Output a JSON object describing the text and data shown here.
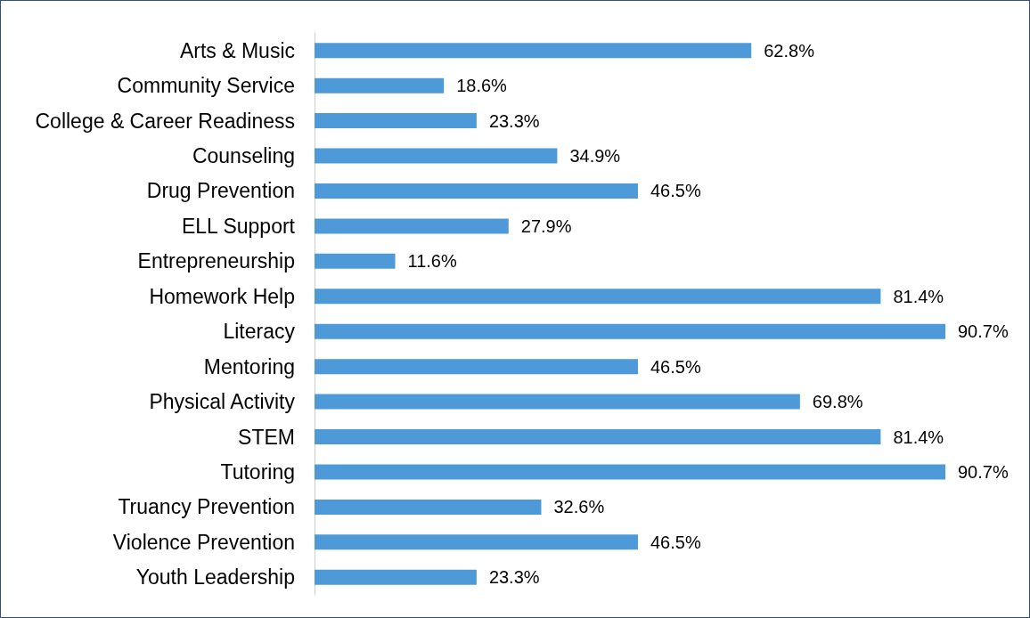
{
  "chart_data": {
    "type": "bar",
    "orientation": "horizontal",
    "categories": [
      "Arts & Music",
      "Community Service",
      "College & Career Readiness",
      "Counseling",
      "Drug Prevention",
      "ELL Support",
      "Entrepreneurship",
      "Homework Help",
      "Literacy",
      "Mentoring",
      "Physical Activity",
      "STEM",
      "Tutoring",
      "Truancy Prevention",
      "Violence Prevention",
      "Youth Leadership"
    ],
    "values": [
      62.8,
      18.6,
      23.3,
      34.9,
      46.5,
      27.9,
      11.6,
      81.4,
      90.7,
      46.5,
      69.8,
      81.4,
      90.7,
      32.6,
      46.5,
      23.3
    ],
    "value_labels": [
      "62.8%",
      "18.6%",
      "23.3%",
      "34.9%",
      "46.5%",
      "27.9%",
      "11.6%",
      "81.4%",
      "90.7%",
      "46.5%",
      "69.8%",
      "81.4%",
      "90.7%",
      "32.6%",
      "46.5%",
      "23.3%"
    ],
    "color": "#4e9ad8"
  }
}
